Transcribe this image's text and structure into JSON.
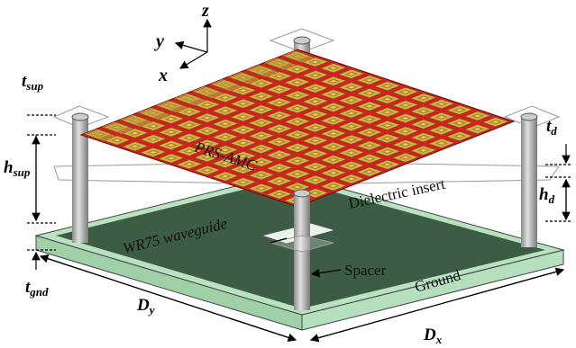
{
  "axes": {
    "x": "x",
    "y": "y",
    "z": "z"
  },
  "dimensions": {
    "t_sup": {
      "main": "t",
      "sub": "sup"
    },
    "h_sup": {
      "main": "h",
      "sub": "sup"
    },
    "t_gnd": {
      "main": "t",
      "sub": "gnd"
    },
    "D_y": {
      "main": "D",
      "sub": "y"
    },
    "D_x": {
      "main": "D",
      "sub": "x"
    },
    "t_d": {
      "main": "t",
      "sub": "d"
    },
    "h_d": {
      "main": "h",
      "sub": "d"
    }
  },
  "labels": {
    "prs_amc": "PRS-AMC",
    "dielectric_insert": "Dielectric insert",
    "waveguide": "WR75 waveguide",
    "spacer": "Spacer",
    "ground": "Ground"
  }
}
